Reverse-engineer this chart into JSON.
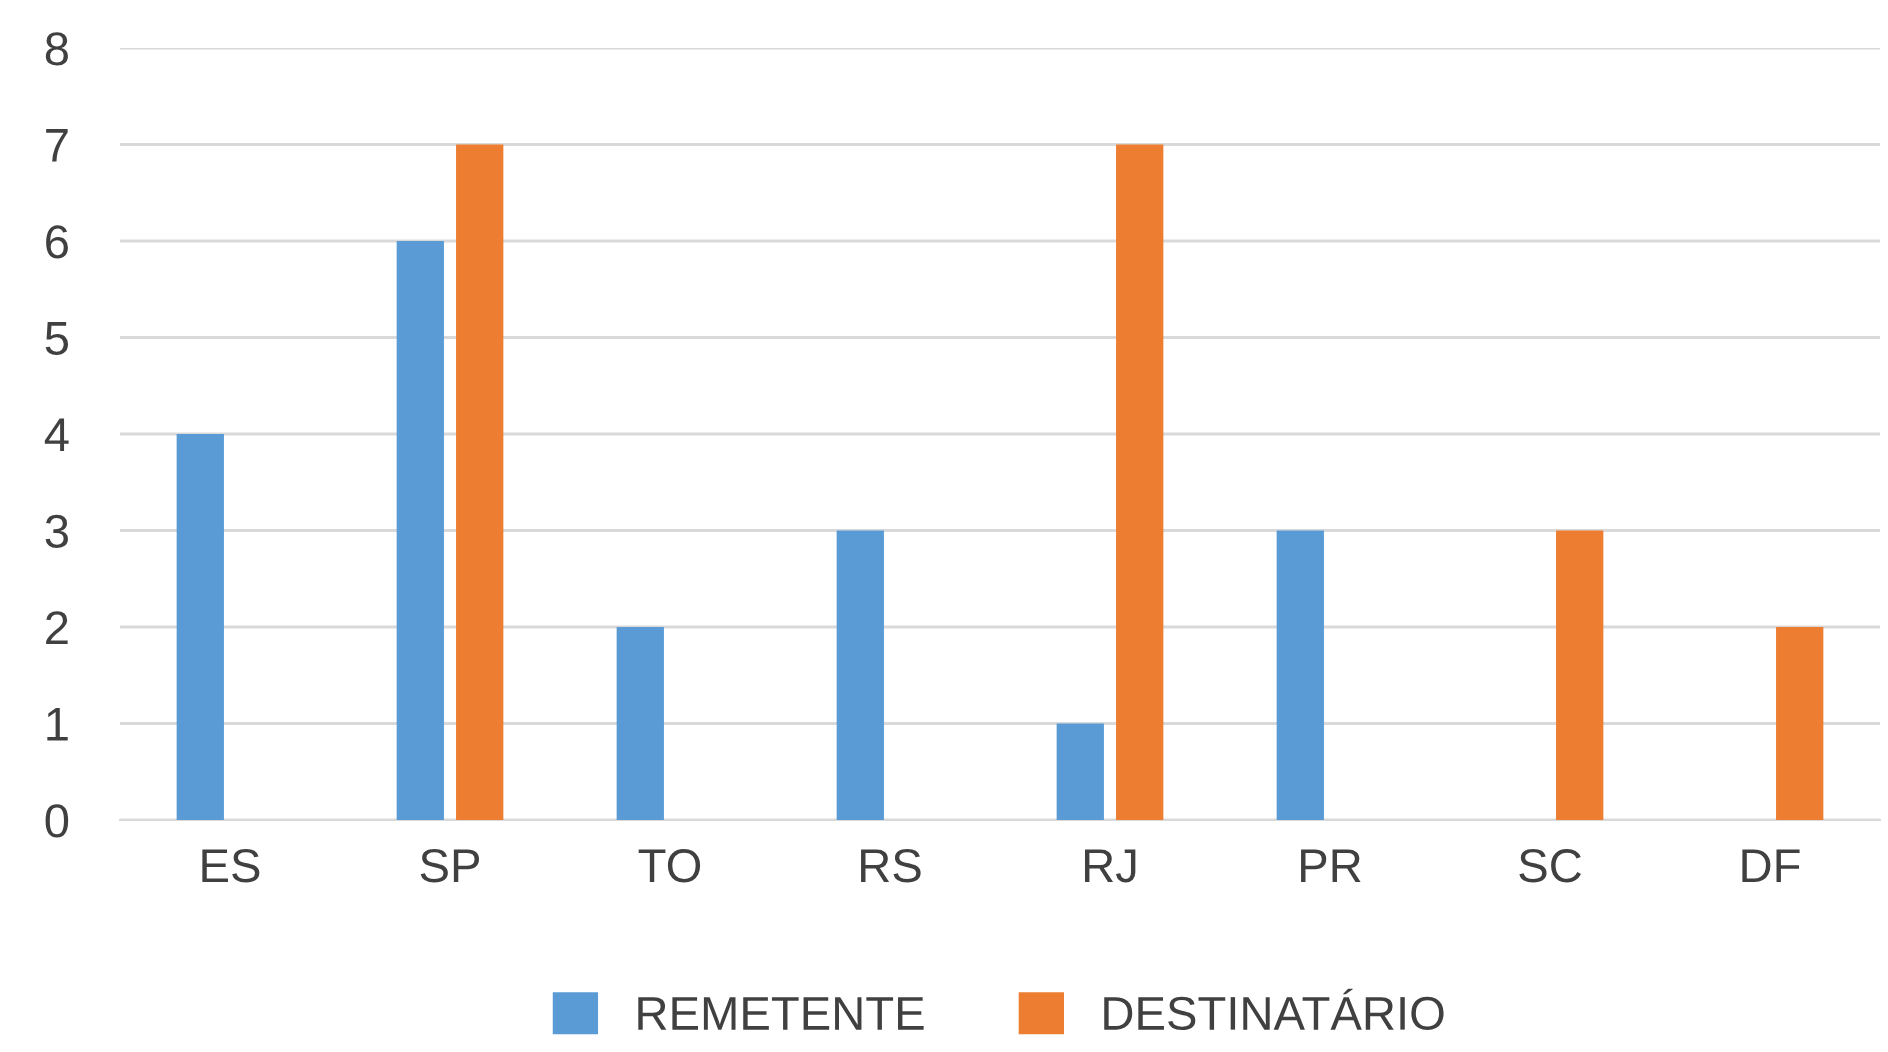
{
  "chart_data": {
    "type": "bar",
    "categories": [
      "ES",
      "SP",
      "TO",
      "RS",
      "RJ",
      "PR",
      "SC",
      "DF"
    ],
    "series": [
      {
        "name": "REMETENTE",
        "color": "#5b9bd5",
        "values": [
          4,
          6,
          2,
          3,
          1,
          3,
          0,
          0
        ]
      },
      {
        "name": "DESTINATÁRIO",
        "color": "#ed7d31",
        "values": [
          0,
          7,
          0,
          0,
          7,
          0,
          3,
          2
        ]
      }
    ],
    "ylim": [
      0,
      8
    ],
    "yticks": [
      0,
      1,
      2,
      3,
      4,
      5,
      6,
      7,
      8
    ],
    "grid": "y",
    "legend": "bottom"
  }
}
